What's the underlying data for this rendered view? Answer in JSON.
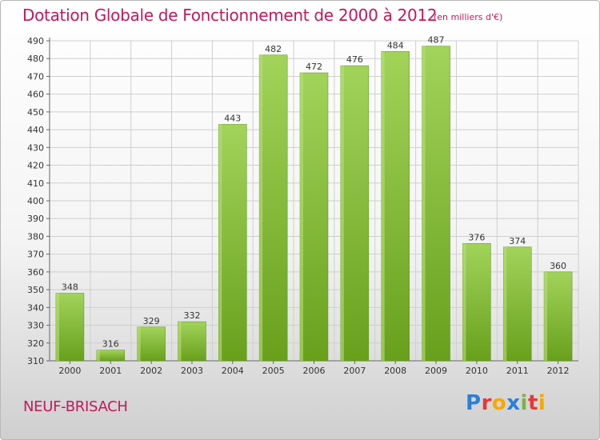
{
  "title": "Dotation Globale de Fonctionnement de 2000 à 2012",
  "unit_note": "(en milliers d'€)",
  "commune": "NEUF-BRISACH",
  "logo": {
    "text": "Proxiti"
  },
  "colors": {
    "bar_light": "#9ccc52",
    "bar_dark": "#6aa11e",
    "title": "#c2185b",
    "grid": "#cfcfcf"
  },
  "chart_data": {
    "type": "bar",
    "categories": [
      "2000",
      "2001",
      "2002",
      "2003",
      "2004",
      "2005",
      "2006",
      "2007",
      "2008",
      "2009",
      "2010",
      "2011",
      "2012"
    ],
    "values": [
      348,
      316,
      329,
      332,
      443,
      482,
      472,
      476,
      484,
      487,
      376,
      374,
      360
    ],
    "ylim": [
      310,
      490
    ],
    "yticks": [
      310,
      320,
      330,
      340,
      350,
      360,
      370,
      380,
      390,
      400,
      410,
      420,
      430,
      440,
      450,
      460,
      470,
      480,
      490
    ],
    "grid": true,
    "data_labels": true
  }
}
